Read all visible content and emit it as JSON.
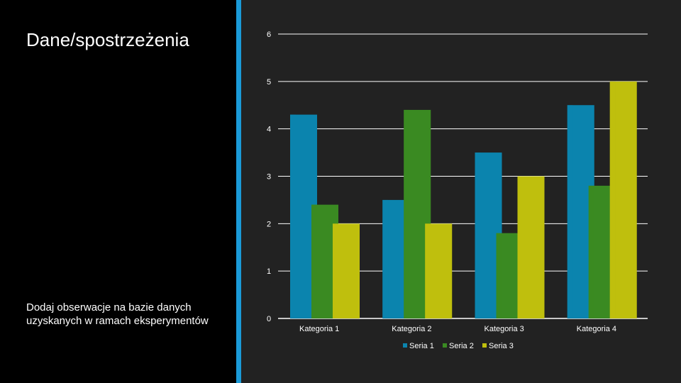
{
  "slide": {
    "title": "Dane/spostrzeżenia",
    "note": "Dodaj obserwacje na bazie danych uzyskanych w ramach eksperymentów"
  },
  "colors": {
    "background": "#000000",
    "chart_background": "#222222",
    "accent": "#1a9ad8",
    "series": [
      "#0b84ae",
      "#3a8a22",
      "#bfbf0d"
    ]
  },
  "chart_data": {
    "type": "bar",
    "categories": [
      "Kategoria 1",
      "Kategoria 2",
      "Kategoria 3",
      "Kategoria 4"
    ],
    "series": [
      {
        "name": "Seria 1",
        "values": [
          4.3,
          2.5,
          3.5,
          4.5
        ]
      },
      {
        "name": "Seria 2",
        "values": [
          2.4,
          4.4,
          1.8,
          2.8
        ]
      },
      {
        "name": "Seria 3",
        "values": [
          2,
          2,
          3,
          5
        ]
      }
    ],
    "ylim": [
      0,
      6
    ],
    "yticks": [
      "0",
      "1",
      "2",
      "3",
      "4",
      "5",
      "6"
    ],
    "grid": true,
    "legend": "bottom"
  }
}
